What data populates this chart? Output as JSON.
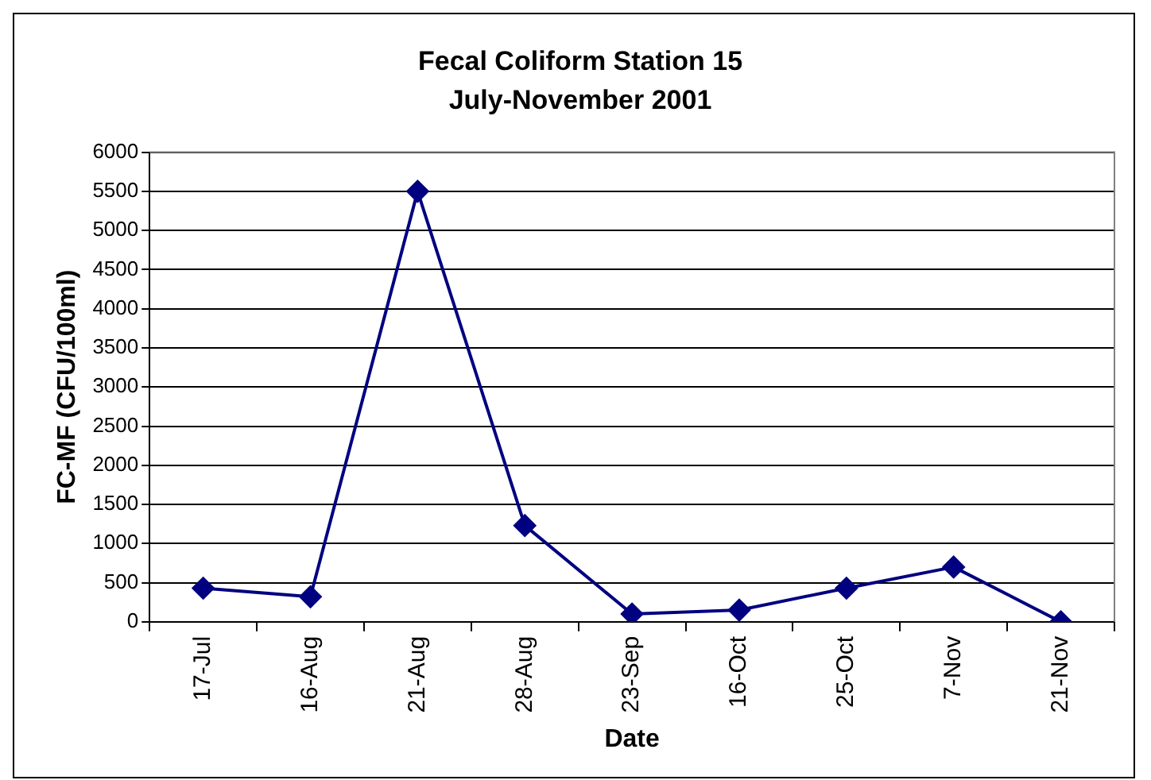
{
  "chart_data": {
    "type": "line",
    "title": "Fecal Coliform Station 15",
    "subtitle": "July-November 2001",
    "xlabel": "Date",
    "ylabel": "FC-MF (CFU/100ml)",
    "categories": [
      "17-Jul",
      "16-Aug",
      "21-Aug",
      "28-Aug",
      "23-Sep",
      "16-Oct",
      "25-Oct",
      "7-Nov",
      "21-Nov"
    ],
    "series": [
      {
        "color": "#000080",
        "values": [
          430,
          320,
          5500,
          1230,
          100,
          150,
          430,
          700,
          0
        ]
      }
    ],
    "ylim": [
      0,
      6000
    ],
    "yticks": [
      0,
      500,
      1000,
      1500,
      2000,
      2500,
      3000,
      3500,
      4000,
      4500,
      5000,
      5500,
      6000
    ],
    "grid": "y",
    "legend": false,
    "marker": "diamond",
    "line_style": "solid"
  }
}
